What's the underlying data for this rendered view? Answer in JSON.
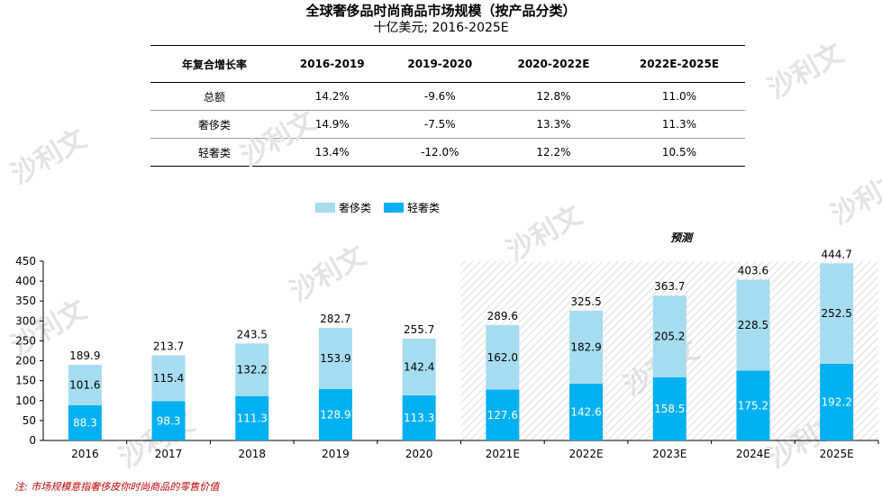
{
  "title": "全球奢侈品时尚商品市场规模（按产品分类）",
  "subtitle": "十亿美元; 2016-2025E",
  "cagr_table": {
    "header": [
      "年复合增长率",
      "2016-2019",
      "2019-2020",
      "2020-2022E",
      "2022E-2025E"
    ],
    "rows": [
      {
        "label": "总额",
        "values": [
          "14.2%",
          "-9.6%",
          "12.8%",
          "11.0%"
        ]
      },
      {
        "label": "奢侈类",
        "values": [
          "14.9%",
          "-7.5%",
          "13.3%",
          "11.3%"
        ]
      },
      {
        "label": "轻奢类",
        "values": [
          "13.4%",
          "-12.0%",
          "12.2%",
          "10.5%"
        ]
      }
    ]
  },
  "forecast_label": "预测",
  "note": "注: 市场规模意指奢侈皮你时尚商品的零售价值",
  "watermark": "沙利文",
  "colors": {
    "luxury": "#a6dcef",
    "light_luxury": "#00b0f0",
    "forecast_hatch": "#bfbfbf"
  },
  "chart_data": {
    "type": "bar",
    "stacked": true,
    "categories": [
      "2016",
      "2017",
      "2018",
      "2019",
      "2020",
      "2021E",
      "2022E",
      "2023E",
      "2024E",
      "2025E"
    ],
    "series": [
      {
        "name": "轻奢类",
        "values": [
          88.3,
          98.3,
          111.3,
          128.9,
          113.3,
          127.6,
          142.6,
          158.5,
          175.2,
          192.2
        ]
      },
      {
        "name": "奢侈类",
        "values": [
          101.6,
          115.4,
          132.2,
          153.9,
          142.4,
          162.0,
          182.9,
          205.2,
          228.5,
          252.5
        ]
      }
    ],
    "totals": [
      "189.9",
      "213.7",
      "243.5",
      "282.7",
      "255.7",
      "289.6",
      "325.5",
      "363.7",
      "403.6",
      "444.7"
    ],
    "y_ticks": [
      0,
      50,
      100,
      150,
      200,
      250,
      300,
      350,
      400,
      450
    ],
    "ylim": [
      0,
      450
    ],
    "legend": "top",
    "forecast_from_index": 5,
    "grid": false
  }
}
